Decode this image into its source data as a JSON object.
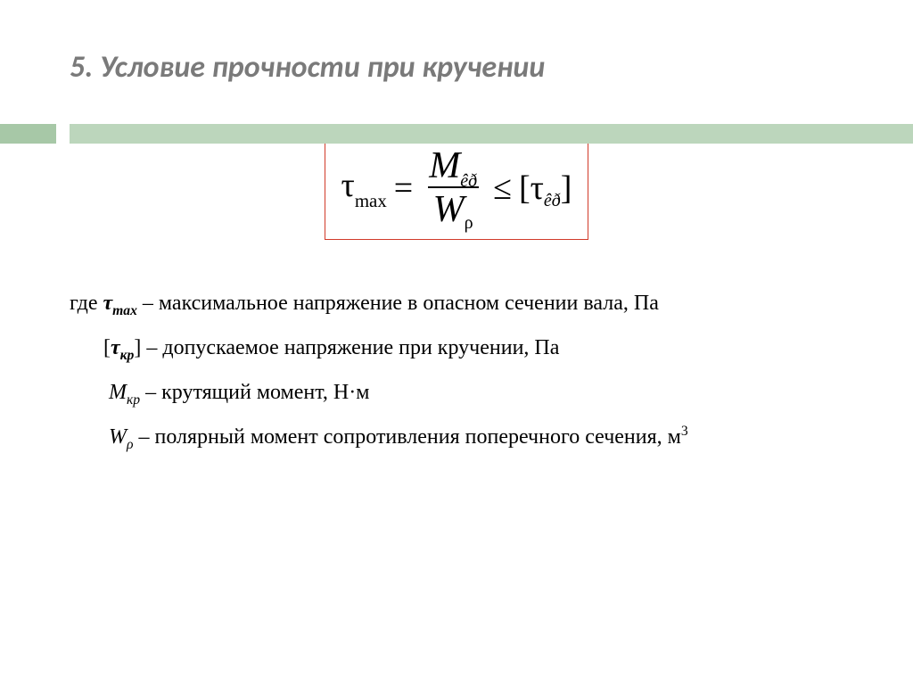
{
  "colors": {
    "title": "#7a7a7a",
    "accent_dark": "#a7c8a7",
    "accent_light": "#bcd6bc",
    "box_border": "#d13a2a",
    "text": "#000000",
    "background": "#ffffff"
  },
  "title": "5. Условие прочности при кручении",
  "formula": {
    "lhs_symbol": "τ",
    "lhs_sub": "max",
    "eq": "=",
    "num_sym": "M",
    "num_sub": "êð",
    "den_sym": "W",
    "den_sub": "ρ",
    "le": "≤",
    "rhs_open": "[",
    "rhs_sym": "τ",
    "rhs_sub": "êð",
    "rhs_close": "]"
  },
  "defs": {
    "where": "где ",
    "d1_sym_tau": "τ",
    "d1_sym_sub": "max",
    "d1_text": " – максимальное напряжение в опасном сечении вала, Па",
    "d2_open": "[",
    "d2_sym_tau": "τ",
    "d2_sym_sub": "кр",
    "d2_close": "]",
    "d2_text": " – допускаемое напряжение при кручении, Па",
    "d3_sym": "М",
    "d3_sub": "кр",
    "d3_text": " – крутящий момент, Н·м",
    "d4_sym": "W",
    "d4_sub": "ρ",
    "d4_text_a": " – полярный момент сопротивления поперечного сечения, м",
    "d4_sup": "3"
  }
}
